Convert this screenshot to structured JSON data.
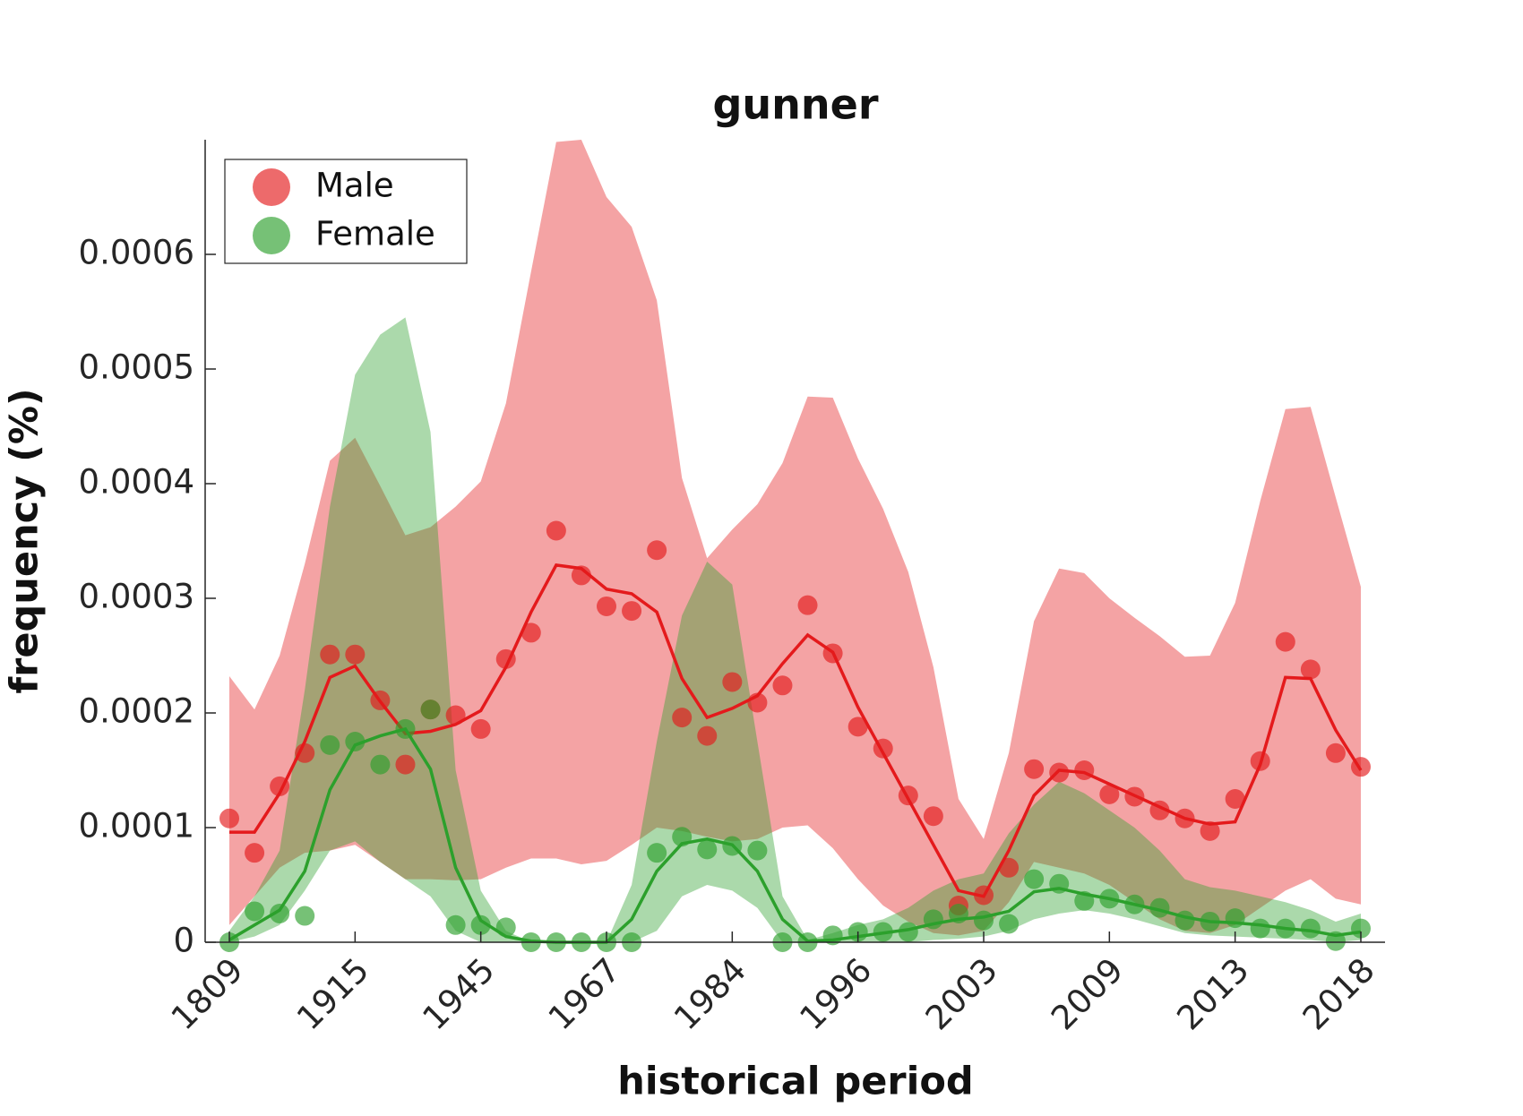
{
  "chart_data": {
    "type": "line",
    "title": "gunner",
    "xlabel": "historical period",
    "ylabel": "frequency (%)",
    "categories": [
      "1809",
      null,
      null,
      null,
      null,
      "1915",
      null,
      null,
      null,
      null,
      "1945",
      null,
      null,
      null,
      null,
      "1967",
      null,
      null,
      null,
      null,
      "1984",
      null,
      null,
      null,
      null,
      "1996",
      null,
      null,
      null,
      null,
      "2003",
      null,
      null,
      null,
      null,
      "2009",
      null,
      null,
      null,
      null,
      "2013",
      null,
      null,
      null,
      null,
      "2018"
    ],
    "ylim": [
      0,
      0.0007
    ],
    "yticks": [
      0,
      0.0001,
      0.0002,
      0.0003,
      0.0004,
      0.0005,
      0.0006
    ],
    "grid": false,
    "legend": "upper left",
    "series": [
      {
        "name": "Male",
        "color": "#e41a1c",
        "values": [
          0.000108,
          7.8e-05,
          0.000136,
          0.000165,
          0.000251,
          0.000251,
          0.000211,
          0.000155,
          0.000203,
          0.000198,
          0.000186,
          0.000247,
          0.00027,
          0.000359,
          0.00032,
          0.000293,
          0.000289,
          0.000342,
          0.000196,
          0.00018,
          0.000227,
          0.000209,
          0.000224,
          0.000294,
          0.000252,
          0.000188,
          0.000169,
          0.000128,
          0.00011,
          3.2e-05,
          4.1e-05,
          6.5e-05,
          0.000151,
          0.000148,
          0.00015,
          0.000129,
          0.000127,
          0.000115,
          0.000108,
          9.7e-05,
          0.000125,
          0.000158,
          0.000262,
          0.000238,
          0.000165,
          0.000153
        ],
        "smooth": [
          9.6e-05,
          9.6e-05,
          0.00013,
          0.000175,
          0.000231,
          0.000241,
          0.00021,
          0.000182,
          0.000184,
          0.00019,
          0.000202,
          0.00024,
          0.000288,
          0.000329,
          0.000326,
          0.000308,
          0.000304,
          0.000288,
          0.00023,
          0.000196,
          0.000204,
          0.000215,
          0.000243,
          0.000268,
          0.000253,
          0.000205,
          0.000165,
          0.000125,
          8.5e-05,
          4.5e-05,
          4e-05,
          8e-05,
          0.000128,
          0.00015,
          0.000148,
          0.000138,
          0.000128,
          0.000118,
          0.000108,
          0.000103,
          0.000105,
          0.000155,
          0.000231,
          0.00023,
          0.000185,
          0.00015
        ],
        "lower": [
          1.5e-05,
          4e-05,
          6.5e-05,
          7.8e-05,
          8e-05,
          8.5e-05,
          7e-05,
          5.5e-05,
          5.5e-05,
          5.4e-05,
          5.5e-05,
          6.5e-05,
          7.3e-05,
          7.3e-05,
          6.8e-05,
          7.1e-05,
          8.5e-05,
          0.0001,
          9.7e-05,
          9.2e-05,
          8.8e-05,
          9e-05,
          0.0001,
          0.000102,
          8.2e-05,
          5.5e-05,
          3.2e-05,
          1.8e-05,
          8e-06,
          6e-06,
          1e-05,
          3.5e-05,
          7e-05,
          6.5e-05,
          6e-05,
          5e-05,
          3.5e-05,
          2e-05,
          1e-05,
          8e-06,
          1.5e-05,
          3e-05,
          4.5e-05,
          5.5e-05,
          3.8e-05,
          3.3e-05
        ],
        "upper": [
          0.000232,
          0.000203,
          0.00025,
          0.00033,
          0.00042,
          0.00044,
          0.000398,
          0.000355,
          0.000362,
          0.00038,
          0.000402,
          0.00047,
          0.000585,
          0.000698,
          0.0007,
          0.00065,
          0.000624,
          0.00056,
          0.000405,
          0.000335,
          0.00036,
          0.000382,
          0.000418,
          0.000476,
          0.000475,
          0.000422,
          0.000378,
          0.000323,
          0.00024,
          0.000125,
          9e-05,
          0.000165,
          0.00028,
          0.000326,
          0.000322,
          0.0003,
          0.000283,
          0.000267,
          0.000249,
          0.00025,
          0.000296,
          0.000385,
          0.000465,
          0.000467,
          0.000388,
          0.00031
        ]
      },
      {
        "name": "Female",
        "color": "#2ca02c",
        "values": [
          0,
          2.7e-05,
          2.5e-05,
          2.3e-05,
          0.000172,
          0.000175,
          0.000155,
          0.000186,
          0.000203,
          1.5e-05,
          1.5e-05,
          1.3e-05,
          0,
          0,
          0,
          0,
          0,
          7.8e-05,
          9.2e-05,
          8.1e-05,
          8.4e-05,
          8e-05,
          0,
          0,
          6e-06,
          9e-06,
          9e-06,
          9e-06,
          2e-05,
          2.5e-05,
          1.9e-05,
          1.6e-05,
          5.5e-05,
          5.1e-05,
          3.6e-05,
          3.8e-05,
          3.3e-05,
          3e-05,
          1.9e-05,
          1.8e-05,
          2.1e-05,
          1.2e-05,
          1.2e-05,
          1.2e-05,
          1e-06,
          1.2e-05
        ],
        "smooth": [
          2e-06,
          1.5e-05,
          2.8e-05,
          6.2e-05,
          0.000133,
          0.000172,
          0.00018,
          0.000186,
          0.000151,
          6.5e-05,
          1.9e-05,
          5e-06,
          1e-06,
          0,
          0,
          0,
          2e-05,
          6.2e-05,
          8.6e-05,
          9e-05,
          8.5e-05,
          6.2e-05,
          2e-05,
          1e-06,
          2e-06,
          5e-06,
          8e-06,
          1.1e-05,
          1.6e-05,
          2e-05,
          2.2e-05,
          2.7e-05,
          4.4e-05,
          4.7e-05,
          4.2e-05,
          3.8e-05,
          3.3e-05,
          2.8e-05,
          2.2e-05,
          1.8e-05,
          1.7e-05,
          1.5e-05,
          1.2e-05,
          1e-05,
          6e-06,
          9e-06
        ],
        "lower": [
          0,
          5e-06,
          1.5e-05,
          4.5e-05,
          8e-05,
          8.8e-05,
          7e-05,
          5.5e-05,
          4e-05,
          1e-05,
          0,
          0,
          0,
          0,
          0,
          0,
          0,
          1e-05,
          4e-05,
          5e-05,
          4.5e-05,
          3e-05,
          0,
          0,
          0,
          0,
          0,
          0,
          2e-06,
          3e-06,
          5e-06,
          1e-05,
          2e-05,
          2.5e-05,
          2.8e-05,
          2.5e-05,
          2e-05,
          1.4e-05,
          8e-06,
          6e-06,
          5e-06,
          4e-06,
          3e-06,
          2e-06,
          0,
          2e-06
        ],
        "upper": [
          1e-05,
          4e-05,
          8e-05,
          0.00022,
          0.00038,
          0.000495,
          0.00053,
          0.000545,
          0.000445,
          0.00015,
          4.5e-05,
          1e-05,
          0,
          0,
          0,
          0,
          5e-05,
          0.000175,
          0.000285,
          0.000332,
          0.000312,
          0.000175,
          4e-05,
          2e-06,
          8e-06,
          1.5e-05,
          2e-05,
          3e-05,
          4.5e-05,
          5.5e-05,
          6e-05,
          9.5e-05,
          0.00012,
          0.00014,
          0.00013,
          0.000115,
          0.0001,
          8e-05,
          5.5e-05,
          4.8e-05,
          4.5e-05,
          4e-05,
          3.5e-05,
          2.8e-05,
          1.8e-05,
          2.5e-05
        ]
      }
    ]
  }
}
